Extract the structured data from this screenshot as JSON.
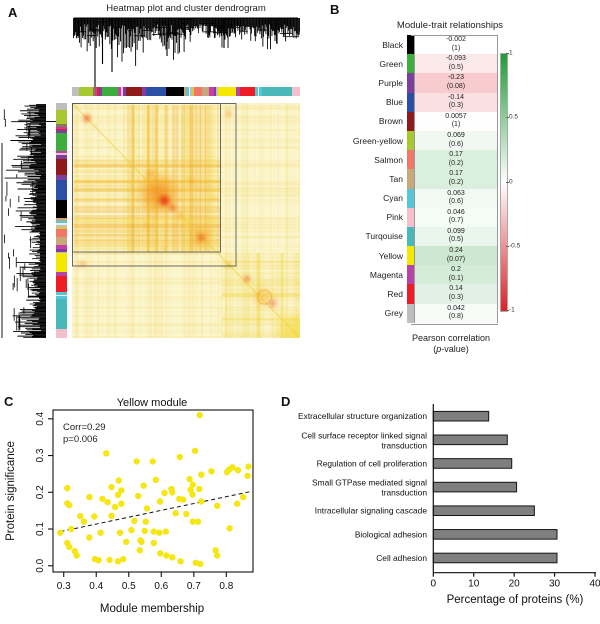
{
  "panel_a": {
    "letter": "A",
    "title": "Heatmap plot and cluster dendrogram",
    "heatmap_colors": {
      "base": "#FBF6CE",
      "stripe": "#F2C93A",
      "warm": "#F29B1D",
      "hot": "#E8380D"
    },
    "module_band": [
      {
        "c": "#BEBEBE",
        "w": 3
      },
      {
        "c": "#A8C832",
        "w": 5.5
      },
      {
        "c": "#8A7A52",
        "w": 1
      },
      {
        "c": "#C83CA8",
        "w": 0.8
      },
      {
        "c": "#EE1C25",
        "w": 0.7
      },
      {
        "c": "#7D3F9E",
        "w": 1.2
      },
      {
        "c": "#3DAE3D",
        "w": 7
      },
      {
        "c": "#C83CA8",
        "w": 0.9
      },
      {
        "c": "#F5BFCE",
        "w": 0.9
      },
      {
        "c": "#7D3F9E",
        "w": 1.4
      },
      {
        "c": "#8F1A1A",
        "w": 6.5
      },
      {
        "c": "#7D3F9E",
        "w": 1.8
      },
      {
        "c": "#2B4FA5",
        "w": 8
      },
      {
        "c": "#000000",
        "w": 7.5
      },
      {
        "c": "#C8A87A",
        "w": 1
      },
      {
        "c": "#55C8D8",
        "w": 1
      },
      {
        "c": "#EDEDED",
        "w": 0.5
      },
      {
        "c": "#BEBEBE",
        "w": 0.9
      },
      {
        "c": "#D8C84A",
        "w": 0.7
      },
      {
        "c": "#F07868",
        "w": 3.5
      },
      {
        "c": "#C8A87A",
        "w": 3
      },
      {
        "c": "#C83CA8",
        "w": 1.8
      },
      {
        "c": "#7D3F9E",
        "w": 1
      },
      {
        "c": "#BEBEBE",
        "w": 0.7
      },
      {
        "c": "#F5E800",
        "w": 7.5
      },
      {
        "c": "#B545A5",
        "w": 1.5
      },
      {
        "c": "#EE1C25",
        "w": 6.5
      },
      {
        "c": "#55C8D8",
        "w": 1
      },
      {
        "c": "#EDEDED",
        "w": 0.4
      },
      {
        "c": "#55C8D8",
        "w": 1.5
      },
      {
        "c": "#48B8B8",
        "w": 12
      },
      {
        "c": "#F5BFCE",
        "w": 3.5
      }
    ]
  },
  "panel_b": {
    "letter": "B",
    "title": "Module-trait relationships",
    "rows": [
      {
        "module": "Black",
        "color": "#000000",
        "corr": "-0.002",
        "p": "(1)",
        "corr_num": -0.002
      },
      {
        "module": "Green",
        "color": "#3DAE3D",
        "corr": "-0.093",
        "p": "(0.5)",
        "corr_num": -0.093
      },
      {
        "module": "Purple",
        "color": "#7D3F9E",
        "corr": "-0.23",
        "p": "(0.08)",
        "corr_num": -0.23
      },
      {
        "module": "Blue",
        "color": "#2B4FA5",
        "corr": "-0.14",
        "p": "(0.3)",
        "corr_num": -0.14
      },
      {
        "module": "Brown",
        "color": "#8F1A1A",
        "corr": "0.0057",
        "p": "(1)",
        "corr_num": 0.0057
      },
      {
        "module": "Green-yellow",
        "color": "#A8C832",
        "corr": "0.069",
        "p": "(0.6)",
        "corr_num": 0.069
      },
      {
        "module": "Salmon",
        "color": "#F07868",
        "corr": "0.17",
        "p": "(0.2)",
        "corr_num": 0.17
      },
      {
        "module": "Tan",
        "color": "#C8A87A",
        "corr": "0.17",
        "p": "(0.2)",
        "corr_num": 0.17
      },
      {
        "module": "Cyan",
        "color": "#55C8D8",
        "corr": "0.063",
        "p": "(0.6)",
        "corr_num": 0.063
      },
      {
        "module": "Pink",
        "color": "#F5BFCE",
        "corr": "0.046",
        "p": "(0.7)",
        "corr_num": 0.046
      },
      {
        "module": "Turqouise",
        "color": "#48B8B8",
        "corr": "0.099",
        "p": "(0.5)",
        "corr_num": 0.099
      },
      {
        "module": "Yellow",
        "color": "#F5E800",
        "corr": "0.24",
        "p": "(0.07)",
        "corr_num": 0.24
      },
      {
        "module": "Magenta",
        "color": "#B545A5",
        "corr": "0.2",
        "p": "(0.1)",
        "corr_num": 0.2
      },
      {
        "module": "Red",
        "color": "#EE1C25",
        "corr": "0.14",
        "p": "(0.3)",
        "corr_num": 0.14
      },
      {
        "module": "Grey",
        "color": "#BEBEBE",
        "corr": "0.042",
        "p": "(0.8)",
        "corr_num": 0.042
      }
    ],
    "colorbar": {
      "ticks": [
        "1",
        "0.5",
        "0",
        "-0.5",
        "-1"
      ],
      "gradient_top": "#1F9C35",
      "gradient_mid": "#FFFFFF",
      "gradient_bottom": "#DD2127"
    },
    "caption_line1": "Pearson correlation",
    "caption_line2_prefix": "(",
    "caption_line2_italic": "p",
    "caption_line2_suffix": "-value)"
  },
  "panel_c": {
    "letter": "C"
  },
  "panel_d": {
    "letter": "D"
  },
  "chart_data": [
    {
      "id": "yellow-module-scatter",
      "type": "scatter",
      "title": "Yellow module",
      "xlabel": "Module membership",
      "ylabel": "Protein significance",
      "xlim": [
        0.267,
        0.882
      ],
      "ylim": [
        -0.017,
        0.424
      ],
      "xticks": [
        0.3,
        0.4,
        0.5,
        0.6,
        0.7,
        0.8
      ],
      "yticks": [
        0.0,
        0.1,
        0.2,
        0.3,
        0.4
      ],
      "annotation_line1": "Corr=0.29",
      "annotation_line2": "p=0.006",
      "point_color": "#F5E616",
      "trendline": {
        "style": "dashed",
        "x1": 0.29,
        "y1": 0.093,
        "x2": 0.88,
        "y2": 0.203
      },
      "points": [
        [
          0.311,
          0.211
        ],
        [
          0.311,
          0.17
        ],
        [
          0.317,
          0.165
        ],
        [
          0.323,
          0.1
        ],
        [
          0.311,
          0.062
        ],
        [
          0.317,
          0.051
        ],
        [
          0.334,
          0.04
        ],
        [
          0.34,
          0.028
        ],
        [
          0.289,
          0.09
        ],
        [
          0.351,
          0.135
        ],
        [
          0.362,
          0.12
        ],
        [
          0.379,
          0.187
        ],
        [
          0.379,
          0.077
        ],
        [
          0.394,
          0.134
        ],
        [
          0.396,
          0.018
        ],
        [
          0.407,
          0.015
        ],
        [
          0.413,
          0.09
        ],
        [
          0.419,
          0.182
        ],
        [
          0.431,
          0.306
        ],
        [
          0.435,
          0.173
        ],
        [
          0.441,
          0.016
        ],
        [
          0.447,
          0.214
        ],
        [
          0.447,
          0.136
        ],
        [
          0.458,
          0.16
        ],
        [
          0.467,
          0.193
        ],
        [
          0.467,
          0.012
        ],
        [
          0.469,
          0.232
        ],
        [
          0.477,
          0.169
        ],
        [
          0.477,
          0.205
        ],
        [
          0.483,
          0.018
        ],
        [
          0.473,
          0.09
        ],
        [
          0.492,
          0.065
        ],
        [
          0.508,
          0.097
        ],
        [
          0.517,
          0.122
        ],
        [
          0.524,
          0.284
        ],
        [
          0.529,
          0.19
        ],
        [
          0.534,
          0.042
        ],
        [
          0.536,
          0.069
        ],
        [
          0.539,
          0.065
        ],
        [
          0.546,
          0.218
        ],
        [
          0.552,
          0.12
        ],
        [
          0.549,
          0.095
        ],
        [
          0.556,
          0.156
        ],
        [
          0.574,
          0.284
        ],
        [
          0.577,
          0.093
        ],
        [
          0.577,
          0.062
        ],
        [
          0.583,
          0.234
        ],
        [
          0.594,
          0.09
        ],
        [
          0.596,
          0.175
        ],
        [
          0.597,
          0.034
        ],
        [
          0.61,
          0.198
        ],
        [
          0.614,
          0.093
        ],
        [
          0.616,
          0.028
        ],
        [
          0.631,
          0.209
        ],
        [
          0.634,
          0.2
        ],
        [
          0.634,
          0.023
        ],
        [
          0.644,
          0.143
        ],
        [
          0.655,
          0.182
        ],
        [
          0.657,
          0.296
        ],
        [
          0.659,
          0.012
        ],
        [
          0.667,
          0.18
        ],
        [
          0.677,
          0.141
        ],
        [
          0.687,
          0.236
        ],
        [
          0.69,
          0.207
        ],
        [
          0.696,
          0.194
        ],
        [
          0.697,
          0.221
        ],
        [
          0.697,
          0.12
        ],
        [
          0.704,
          0.313
        ],
        [
          0.706,
          0.008
        ],
        [
          0.713,
          0.12
        ],
        [
          0.718,
          0.41
        ],
        [
          0.717,
          0.209
        ],
        [
          0.72,
          0.005
        ],
        [
          0.723,
          0.248
        ],
        [
          0.723,
          0.175
        ],
        [
          0.754,
          0.257
        ],
        [
          0.767,
          0.042
        ],
        [
          0.772,
          0.163
        ],
        [
          0.772,
          0.028
        ],
        [
          0.802,
          0.255
        ],
        [
          0.809,
          0.262
        ],
        [
          0.81,
          0.102
        ],
        [
          0.819,
          0.268
        ],
        [
          0.833,
          0.169
        ],
        [
          0.836,
          0.26
        ],
        [
          0.852,
          0.187
        ],
        [
          0.865,
          0.245
        ],
        [
          0.868,
          0.27
        ]
      ]
    },
    {
      "id": "go-term-bars",
      "type": "bar",
      "orientation": "horizontal",
      "categories": [
        "Extracellular structure organization",
        "Cell surface receptor linked signal transduction",
        "Regulation of cell proliferation",
        "Small GTPase mediated signal transduction",
        "Intracellular signaling cascade",
        "Biological adhesion",
        "Cell adhesion"
      ],
      "label_lines": [
        [
          "Extracellular structure organization"
        ],
        [
          "Cell surface receptor linked signal",
          "transduction"
        ],
        [
          "Regulation of cell proliferation"
        ],
        [
          "Small GTPase mediated signal",
          "transduction"
        ],
        [
          "Intracellular signaling cascade"
        ],
        [
          "Biological adhesion"
        ],
        [
          "Cell adhesion"
        ]
      ],
      "values": [
        13.7,
        18.3,
        19.4,
        20.6,
        25,
        30.6,
        30.6
      ],
      "xlabel": "Percentage of proteins (%)",
      "xticks": [
        0,
        10,
        20,
        30,
        40
      ],
      "xlim": [
        0,
        40
      ],
      "bar_color": "#7F7F7F",
      "bar_border": "#141414"
    }
  ]
}
